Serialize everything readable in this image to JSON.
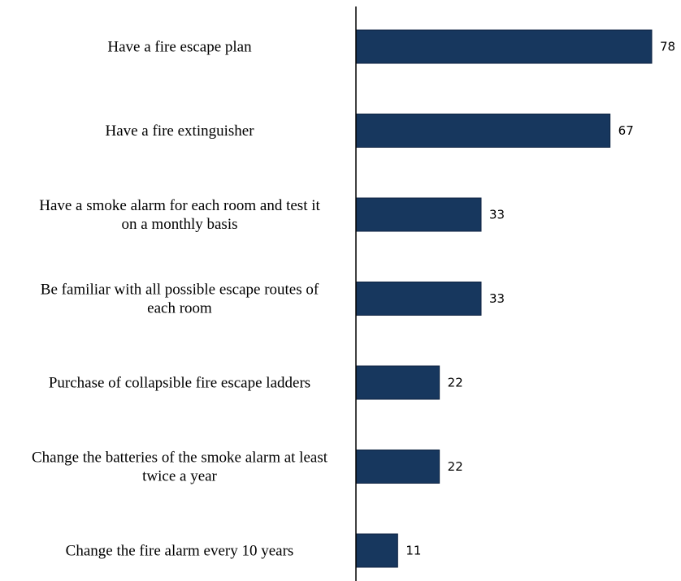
{
  "chart_data": {
    "type": "bar",
    "orientation": "horizontal",
    "categories": [
      [
        "Have a fire escape plan "
      ],
      [
        "Have a fire extinguisher"
      ],
      [
        "Have a smoke alarm  for each room and test it",
        "on a monthly basis"
      ],
      [
        "Be familiar with all possible escape routes of",
        "each room"
      ],
      [
        "Purchase of collapsible fire escape ladders "
      ],
      [
        "Change the batteries of the smoke alarm at least",
        "twice a year"
      ],
      [
        "Change the fire alarm every 10 years "
      ]
    ],
    "values": [
      78,
      67,
      33,
      33,
      22,
      22,
      11
    ],
    "data_labels": [
      "78",
      "67",
      "33",
      "33",
      "22",
      "22",
      "11"
    ],
    "xlim": [
      0,
      80
    ],
    "axis": "category axis line only, no value axis or ticks",
    "grid": false,
    "legend": "none",
    "title": "",
    "xlabel": "",
    "ylabel": ""
  },
  "colors": {
    "bar_fill": "#17375e",
    "bar_stroke": "#0d2240",
    "axis": "#000000",
    "background": "#ffffff"
  }
}
